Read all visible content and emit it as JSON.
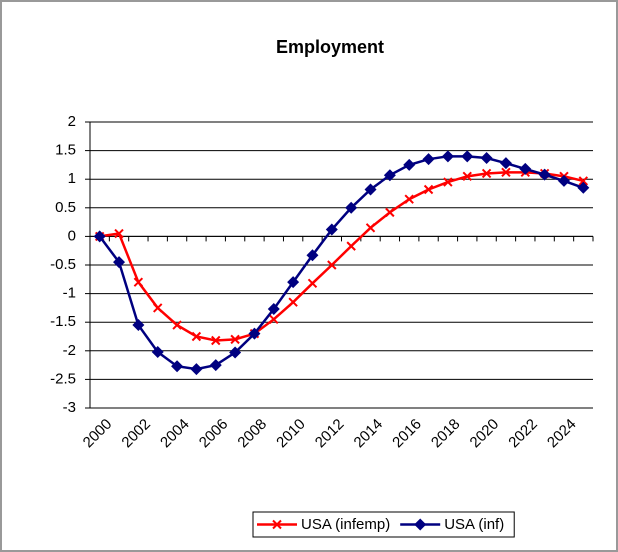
{
  "chart_data": {
    "type": "line",
    "title": "Employment",
    "categories": [
      "2000",
      null,
      "2002",
      null,
      "2004",
      null,
      "2006",
      null,
      "2008",
      null,
      "2010",
      null,
      "2012",
      null,
      "2014",
      null,
      "2016",
      null,
      "2018",
      null,
      "2020",
      null,
      "2022",
      null,
      "2024",
      null
    ],
    "series": [
      {
        "name": "USA (infemp)",
        "color": "#ff0000",
        "marker": "x",
        "values": [
          0,
          0.05,
          -0.8,
          -1.25,
          -1.55,
          -1.75,
          -1.82,
          -1.8,
          -1.7,
          -1.45,
          -1.15,
          -0.82,
          -0.5,
          -0.17,
          0.15,
          0.42,
          0.65,
          0.82,
          0.95,
          1.05,
          1.1,
          1.12,
          1.12,
          1.1,
          1.05,
          0.97
        ]
      },
      {
        "name": "USA (inf)",
        "color": "#000080",
        "marker": "diamond",
        "values": [
          0,
          -0.45,
          -1.55,
          -2.02,
          -2.27,
          -2.32,
          -2.25,
          -2.03,
          -1.7,
          -1.27,
          -0.8,
          -0.33,
          0.12,
          0.5,
          0.82,
          1.07,
          1.25,
          1.35,
          1.4,
          1.4,
          1.37,
          1.28,
          1.18,
          1.08,
          0.97,
          0.85
        ]
      }
    ],
    "ylim": [
      -3,
      2
    ],
    "yticks": [
      2,
      1.5,
      1,
      0.5,
      0,
      -0.5,
      -1,
      -1.5,
      -2,
      -2.5,
      -3
    ],
    "grid": true,
    "legend": "bottom"
  }
}
